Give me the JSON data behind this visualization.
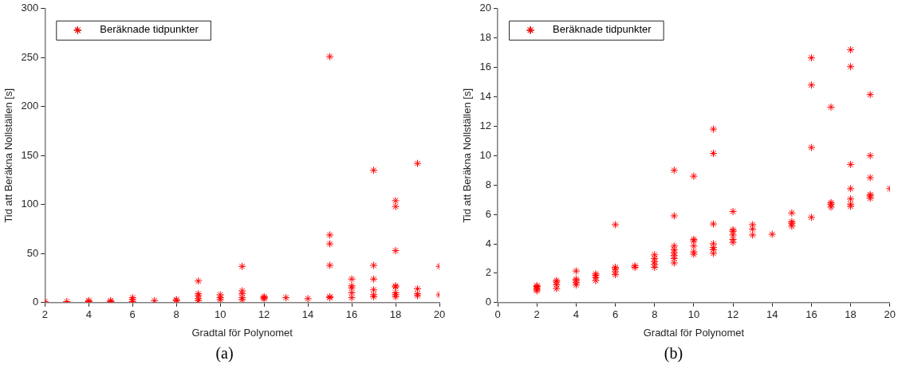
{
  "chart_data": [
    {
      "type": "scatter",
      "xlabel": "Gradtal för Polynomet",
      "ylabel": "Tid att Beräkna Nollställen [s]",
      "annotations": [
        "(a)"
      ],
      "legend": "top left",
      "marker": "cross",
      "grid": false,
      "xlim": [
        2,
        20
      ],
      "xticks": [
        2,
        4,
        6,
        8,
        10,
        12,
        14,
        16,
        18,
        20
      ],
      "ylim": [
        0,
        300
      ],
      "yticks": [
        0,
        50,
        100,
        150,
        200,
        250,
        300
      ],
      "series": [
        {
          "name": "Beräknade tidpunkter",
          "color": "#ff0000",
          "x": [
            2,
            3,
            4,
            4,
            5,
            5,
            6,
            6,
            6,
            7,
            8,
            8,
            9,
            9,
            9,
            9,
            9,
            10,
            10,
            10,
            11,
            11,
            11,
            11,
            11,
            12,
            12,
            12,
            13,
            14,
            15,
            15,
            15,
            15,
            15,
            15,
            16,
            16,
            16,
            16,
            16,
            17,
            17,
            17,
            17,
            17,
            17,
            18,
            18,
            18,
            18,
            18,
            18,
            18,
            18,
            19,
            19,
            19,
            19,
            20,
            20
          ],
          "values": [
            1,
            1,
            1,
            2,
            1,
            2,
            1,
            3,
            5,
            2,
            2,
            3,
            2,
            4,
            7,
            9,
            22,
            3,
            5,
            8,
            3,
            5,
            9,
            12,
            37,
            4,
            5,
            6,
            5,
            4,
            5,
            6,
            38,
            60,
            69,
            251,
            5,
            10,
            15,
            17,
            24,
            6,
            8,
            13,
            24,
            38,
            135,
            6,
            8,
            10,
            16,
            17,
            53,
            98,
            104,
            7,
            9,
            14,
            142,
            8,
            37
          ]
        }
      ]
    },
    {
      "type": "scatter",
      "xlabel": "Gradtal för Polynomet",
      "ylabel": "Tid att Beräkna Nollställen [s]",
      "annotations": [
        "(b)"
      ],
      "legend": "top left",
      "marker": "cross",
      "grid": false,
      "xlim": [
        0,
        20
      ],
      "xticks": [
        0,
        2,
        4,
        6,
        8,
        10,
        12,
        14,
        16,
        18,
        20
      ],
      "ylim": [
        0,
        20
      ],
      "yticks": [
        0,
        2,
        4,
        6,
        8,
        10,
        12,
        14,
        16,
        18,
        20
      ],
      "series": [
        {
          "name": "Beräknade tidpunkter",
          "color": "#ff0000",
          "x": [
            2,
            2,
            2,
            2,
            2,
            3,
            3,
            3,
            3,
            4,
            4,
            4,
            4,
            4,
            5,
            5,
            5,
            5,
            6,
            6,
            6,
            6,
            6,
            7,
            7,
            8,
            8,
            8,
            8,
            8,
            9,
            9,
            9,
            9,
            9,
            9,
            9,
            9,
            10,
            10,
            10,
            10,
            10,
            10,
            11,
            11,
            11,
            11,
            11,
            11,
            11,
            12,
            12,
            12,
            12,
            12,
            12,
            13,
            13,
            13,
            14,
            15,
            15,
            15,
            15,
            16,
            16,
            16,
            16,
            17,
            17,
            17,
            17,
            18,
            18,
            18,
            18,
            18,
            18,
            18,
            19,
            19,
            19,
            19,
            19,
            19,
            20
          ],
          "values": [
            0.8,
            0.9,
            1.0,
            1.1,
            1.15,
            0.95,
            1.2,
            1.4,
            1.5,
            1.2,
            1.35,
            1.5,
            1.6,
            2.15,
            1.5,
            1.7,
            1.85,
            1.95,
            1.9,
            2.1,
            2.3,
            2.4,
            5.3,
            2.4,
            2.5,
            2.4,
            2.6,
            2.8,
            3.0,
            3.25,
            2.7,
            3.0,
            3.2,
            3.4,
            3.6,
            3.85,
            5.9,
            9.0,
            3.3,
            3.45,
            3.85,
            4.2,
            4.3,
            8.6,
            3.35,
            3.6,
            3.75,
            4.0,
            5.35,
            10.15,
            11.8,
            4.1,
            4.3,
            4.6,
            4.85,
            4.95,
            6.2,
            4.6,
            5.0,
            5.3,
            4.65,
            5.2,
            5.4,
            5.5,
            6.1,
            5.8,
            10.55,
            14.8,
            16.65,
            6.5,
            6.7,
            6.8,
            13.3,
            6.55,
            6.7,
            7.05,
            7.75,
            9.4,
            16.05,
            17.2,
            7.1,
            7.25,
            7.35,
            8.5,
            10.0,
            14.15,
            7.75
          ]
        }
      ]
    }
  ]
}
